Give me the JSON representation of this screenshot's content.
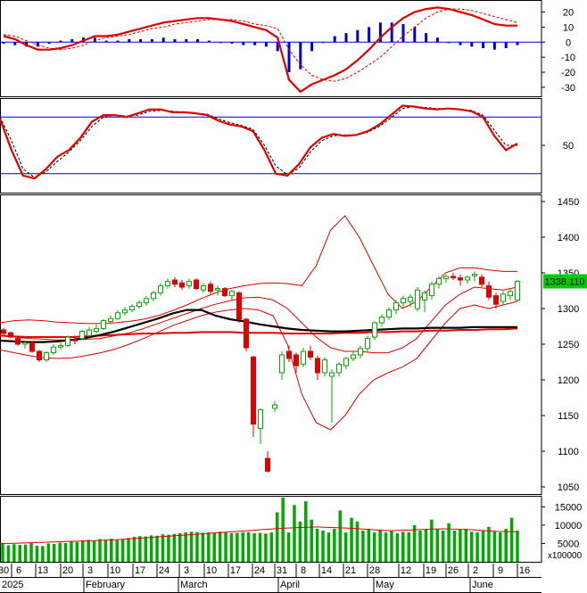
{
  "chart_data": [
    {
      "type": "line",
      "panel": "macd",
      "y_ticks": [
        "20",
        "10",
        "0",
        "-10",
        "-20",
        "-30"
      ],
      "ylim": [
        -36,
        28
      ],
      "series": [
        {
          "role": "macd-line",
          "color": "#e00000",
          "values": [
            4,
            2,
            -2,
            -5,
            -5,
            -4,
            -2,
            1,
            4,
            4,
            5,
            7,
            9,
            11,
            13,
            14,
            15,
            16,
            16,
            15,
            14,
            12,
            10,
            8,
            3,
            -25,
            -33,
            -28,
            -25,
            -22,
            -18,
            -12,
            -5,
            3,
            10,
            16,
            20,
            22,
            23,
            22,
            20,
            18,
            15,
            12,
            11,
            11
          ]
        },
        {
          "role": "signal-line",
          "color": "#e00000",
          "values": [
            5,
            4,
            1,
            -2,
            -4,
            -5,
            -4,
            -2,
            1,
            3,
            4,
            5,
            7,
            9,
            10,
            12,
            13,
            14,
            15,
            15,
            15,
            14,
            12,
            11,
            9,
            -5,
            -15,
            -22,
            -25,
            -26,
            -24,
            -20,
            -15,
            -10,
            -3,
            4,
            10,
            16,
            20,
            22,
            22,
            21,
            19,
            17,
            15,
            13
          ]
        },
        {
          "role": "histogram",
          "color": "#0000cc",
          "values": [
            -1,
            -2,
            -3,
            -3,
            -1,
            1,
            2,
            3,
            3,
            1,
            1,
            2,
            2,
            2,
            3,
            2,
            2,
            2,
            1,
            0,
            -1,
            -2,
            -2,
            -3,
            -6,
            -20,
            -18,
            -6,
            0,
            4,
            6,
            8,
            10,
            13,
            13,
            12,
            10,
            6,
            3,
            0,
            -2,
            -3,
            -4,
            -5,
            -4,
            -2
          ]
        }
      ]
    },
    {
      "type": "line",
      "panel": "stochastic",
      "y_ticks": [
        "50"
      ],
      "ylim": [
        0,
        100
      ],
      "reference_lines": [
        80,
        20
      ],
      "reference_color": "#0000cc",
      "series": [
        {
          "role": "%K",
          "color": "#e00000",
          "values": [
            78,
            45,
            18,
            15,
            25,
            38,
            45,
            58,
            75,
            82,
            82,
            80,
            84,
            88,
            88,
            85,
            85,
            84,
            82,
            76,
            72,
            70,
            65,
            45,
            20,
            18,
            30,
            48,
            58,
            62,
            60,
            61,
            65,
            72,
            82,
            92,
            91,
            89,
            88,
            89,
            88,
            86,
            80,
            60,
            45,
            52
          ]
        },
        {
          "role": "%D",
          "color": "#000000",
          "values": [
            80,
            55,
            25,
            16,
            22,
            33,
            43,
            55,
            70,
            80,
            82,
            81,
            82,
            86,
            87,
            86,
            85,
            84,
            83,
            78,
            74,
            71,
            67,
            50,
            28,
            19,
            26,
            43,
            55,
            60,
            61,
            61,
            64,
            70,
            79,
            89,
            91,
            90,
            89,
            89,
            88,
            87,
            82,
            66,
            50,
            50
          ]
        }
      ]
    },
    {
      "type": "candlestick",
      "panel": "price",
      "y_ticks": [
        "1450",
        "1400",
        "1350",
        "1300",
        "1250",
        "1200",
        "1150",
        "1100",
        "1050"
      ],
      "ylim": [
        1040,
        1460
      ],
      "last_price": "1338.110",
      "last_price_color": "#00cc00",
      "up_color": "#00aa00",
      "down_color": "#e00000",
      "ohlc": [
        [
          1270,
          1273,
          1262,
          1265
        ],
        [
          1266,
          1268,
          1258,
          1260
        ],
        [
          1258,
          1260,
          1248,
          1250
        ],
        [
          1250,
          1255,
          1244,
          1252
        ],
        [
          1252,
          1254,
          1238,
          1240
        ],
        [
          1240,
          1242,
          1225,
          1228
        ],
        [
          1228,
          1240,
          1225,
          1238
        ],
        [
          1238,
          1250,
          1235,
          1246
        ],
        [
          1246,
          1252,
          1242,
          1248
        ],
        [
          1248,
          1262,
          1246,
          1260
        ],
        [
          1256,
          1262,
          1250,
          1255
        ],
        [
          1258,
          1270,
          1256,
          1268
        ],
        [
          1262,
          1274,
          1260,
          1270
        ],
        [
          1268,
          1278,
          1265,
          1272
        ],
        [
          1272,
          1285,
          1270,
          1283
        ],
        [
          1282,
          1290,
          1278,
          1286
        ],
        [
          1286,
          1298,
          1284,
          1294
        ],
        [
          1294,
          1302,
          1290,
          1298
        ],
        [
          1298,
          1306,
          1295,
          1303
        ],
        [
          1303,
          1312,
          1300,
          1308
        ],
        [
          1308,
          1318,
          1304,
          1314
        ],
        [
          1314,
          1325,
          1310,
          1322
        ],
        [
          1322,
          1335,
          1318,
          1332
        ],
        [
          1332,
          1342,
          1328,
          1338
        ],
        [
          1340,
          1344,
          1330,
          1334
        ],
        [
          1336,
          1340,
          1326,
          1330
        ],
        [
          1332,
          1342,
          1328,
          1338
        ],
        [
          1340,
          1342,
          1326,
          1328
        ],
        [
          1326,
          1336,
          1322,
          1332
        ],
        [
          1334,
          1338,
          1320,
          1324
        ],
        [
          1326,
          1332,
          1318,
          1328
        ],
        [
          1328,
          1330,
          1316,
          1318
        ],
        [
          1318,
          1326,
          1312,
          1324
        ],
        [
          1322,
          1324,
          1280,
          1285
        ],
        [
          1285,
          1287,
          1240,
          1245
        ],
        [
          1232,
          1234,
          1120,
          1138
        ],
        [
          1132,
          1160,
          1110,
          1158
        ],
        [
          1090,
          1100,
          1070,
          1072
        ],
        [
          1160,
          1170,
          1155,
          1165
        ],
        [
          1210,
          1240,
          1200,
          1235
        ],
        [
          1240,
          1248,
          1225,
          1230
        ],
        [
          1235,
          1238,
          1210,
          1220
        ],
        [
          1222,
          1245,
          1218,
          1240
        ],
        [
          1240,
          1248,
          1228,
          1232
        ],
        [
          1230,
          1234,
          1200,
          1210
        ],
        [
          1210,
          1232,
          1205,
          1228
        ],
        [
          1205,
          1215,
          1140,
          1210
        ],
        [
          1210,
          1225,
          1205,
          1222
        ],
        [
          1220,
          1232,
          1215,
          1230
        ],
        [
          1230,
          1240,
          1226,
          1235
        ],
        [
          1235,
          1248,
          1230,
          1244
        ],
        [
          1244,
          1262,
          1240,
          1258
        ],
        [
          1260,
          1282,
          1256,
          1280
        ],
        [
          1280,
          1292,
          1275,
          1288
        ],
        [
          1288,
          1302,
          1284,
          1298
        ],
        [
          1298,
          1312,
          1292,
          1308
        ],
        [
          1308,
          1318,
          1300,
          1314
        ],
        [
          1310,
          1320,
          1302,
          1316
        ],
        [
          1300,
          1330,
          1296,
          1326
        ],
        [
          1312,
          1325,
          1295,
          1322
        ],
        [
          1318,
          1338,
          1312,
          1334
        ],
        [
          1334,
          1345,
          1328,
          1342
        ],
        [
          1342,
          1348,
          1336,
          1345
        ],
        [
          1345,
          1350,
          1340,
          1343
        ],
        [
          1343,
          1348,
          1332,
          1340
        ],
        [
          1340,
          1346,
          1335,
          1344
        ],
        [
          1346,
          1352,
          1338,
          1348
        ],
        [
          1344,
          1348,
          1330,
          1334
        ],
        [
          1332,
          1338,
          1312,
          1316
        ],
        [
          1318,
          1322,
          1300,
          1306
        ],
        [
          1310,
          1324,
          1305,
          1320
        ],
        [
          1318,
          1328,
          1312,
          1324
        ],
        [
          1312,
          1340,
          1310,
          1338
        ]
      ],
      "overlays": [
        {
          "role": "bollinger-upper",
          "color": "#e00000",
          "values": [
            1280,
            1283,
            1284,
            1283,
            1281,
            1280,
            1279,
            1279,
            1280,
            1282,
            1285,
            1290,
            1297,
            1305,
            1314,
            1322,
            1328,
            1332,
            1335,
            1336,
            1335,
            1332,
            1360,
            1410,
            1430,
            1400,
            1360,
            1320,
            1300,
            1310,
            1330,
            1350,
            1357,
            1357,
            1354,
            1352,
            1352
          ]
        },
        {
          "role": "bollinger-lower",
          "color": "#e00000",
          "values": [
            1242,
            1238,
            1234,
            1231,
            1230,
            1231,
            1234,
            1238,
            1243,
            1250,
            1258,
            1267,
            1276,
            1283,
            1290,
            1295,
            1298,
            1300,
            1298,
            1290,
            1250,
            1180,
            1140,
            1130,
            1150,
            1180,
            1200,
            1210,
            1218,
            1230,
            1255,
            1280,
            1300,
            1305,
            1300,
            1305,
            1310
          ]
        },
        {
          "role": "middle-band",
          "color": "#e00000",
          "values": [
            1262,
            1260,
            1258,
            1257,
            1256,
            1256,
            1257,
            1258,
            1262,
            1266,
            1272,
            1279,
            1286,
            1293,
            1300,
            1306,
            1311,
            1315,
            1316,
            1312,
            1300,
            1280,
            1260,
            1245,
            1240,
            1240,
            1238,
            1238,
            1245,
            1258,
            1282,
            1305,
            1320,
            1330,
            1328,
            1326,
            1330
          ]
        },
        {
          "role": "ma-long",
          "color": "#000000",
          "values": [
            1255,
            1254,
            1253,
            1253,
            1254,
            1256,
            1259,
            1263,
            1268,
            1274,
            1280,
            1286,
            1293,
            1298,
            1298,
            1290,
            1285,
            1282,
            1278,
            1275,
            1272,
            1270,
            1269,
            1268,
            1268,
            1269,
            1270,
            1271,
            1272,
            1272,
            1273,
            1273,
            1273,
            1274,
            1274,
            1274,
            1274
          ]
        },
        {
          "role": "ma-200",
          "color": "#e00000",
          "values": [
            1262,
            1261,
            1260,
            1260,
            1260,
            1260,
            1261,
            1262,
            1263,
            1264,
            1265,
            1265,
            1266,
            1266,
            1267,
            1267,
            1267,
            1266,
            1266,
            1266,
            1265,
            1265,
            1265,
            1265,
            1266,
            1266,
            1267,
            1267,
            1268,
            1268,
            1269,
            1269,
            1270,
            1270,
            1271,
            1271,
            1272
          ]
        }
      ]
    },
    {
      "type": "bar",
      "panel": "volume",
      "y_ticks": [
        "15000",
        "10000",
        "5000"
      ],
      "unit_label": "x100000",
      "ylim": [
        0,
        18000
      ],
      "bar_color": "#00aa00",
      "avg_line_color": "#e00000",
      "values": [
        5000,
        4500,
        4800,
        4600,
        4700,
        5200,
        4400,
        4300,
        5000,
        4900,
        5200,
        5100,
        5600,
        5400,
        5800,
        6000,
        5700,
        6200,
        6000,
        6300,
        5900,
        6100,
        6500,
        6800,
        7000,
        6900,
        7200,
        7100,
        7500,
        7400,
        7600,
        7800,
        8000,
        8200,
        8100,
        7900,
        8000,
        7800,
        8200,
        8000,
        7800,
        7900,
        8000,
        8100,
        7800,
        7900,
        7700,
        8000,
        13500,
        17500,
        8000,
        15500,
        11000,
        16500,
        11500,
        9000,
        8500,
        8000,
        9000,
        14000,
        8000,
        12000,
        11000,
        8500,
        9000,
        8000,
        8800,
        8000,
        8500,
        7800,
        8200,
        8000,
        10000,
        8500,
        8800,
        11500,
        9000,
        8500,
        10500,
        8500,
        8800,
        9000,
        8200,
        8000,
        8500,
        9500,
        8200,
        8000,
        9000,
        12000,
        8500
      ],
      "avg_values": [
        5000,
        5000,
        5100,
        5200,
        5300,
        5400,
        5500,
        5600,
        5700,
        5800,
        5900,
        6000,
        6200,
        6400,
        6600,
        6800,
        7000,
        7200,
        7400,
        7600,
        7800,
        8000,
        8200,
        8400,
        8600,
        8800,
        9000,
        9200,
        9300,
        9400,
        9500,
        9400,
        9300,
        9200,
        9000,
        8800,
        8600,
        8500,
        8600,
        8700,
        8800,
        8900,
        9000,
        8900,
        8800,
        8700,
        8500,
        8300,
        8200,
        8200
      ]
    }
  ],
  "x_axis": {
    "date_ticks": [
      "30",
      "6",
      "13",
      "20",
      "3",
      "10",
      "17",
      "24",
      "3",
      "10",
      "17",
      "24",
      "31",
      "8",
      "14",
      "21",
      "28",
      "12",
      "19",
      "26",
      "2",
      "9",
      "16"
    ],
    "month_labels": [
      "2025",
      "February",
      "March",
      "April",
      "May",
      "June"
    ]
  }
}
